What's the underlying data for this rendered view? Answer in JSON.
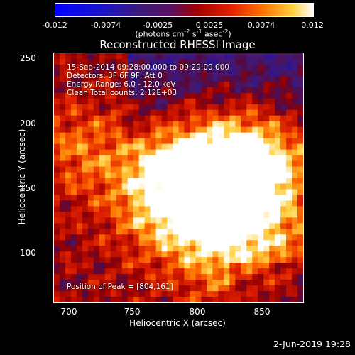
{
  "colorbar": {
    "ticks": [
      "-0.012",
      "-0.0074",
      "-0.0025",
      "0.0025",
      "0.0074",
      "0.012"
    ],
    "units_main": "(photons cm",
    "units_exp1": "-2",
    "units_mid": " s",
    "units_exp2": "-1",
    "units_mid2": " asec",
    "units_exp3": "-2",
    "units_end": ")"
  },
  "title": "Reconstructed RHESSI Image",
  "info": {
    "time": "15-Sep-2014 09:28:00.000 to 09:29:00.000",
    "detectors": "Detectors: 3F 6F 9F, Att 0",
    "energy": "Energy Range: 6.0 - 12.0 keV",
    "method": "Clean    Total counts: 2.12E+03",
    "peak": "Position of Peak = [804,161]"
  },
  "axes": {
    "xlabel": "Heliocentric X (arcsec)",
    "ylabel": "Heliocentric Y (arcsec)",
    "xticks": [
      "700",
      "750",
      "800",
      "850"
    ],
    "yticks": [
      "100",
      "150",
      "200",
      "250"
    ]
  },
  "footer": "2-Jun-2019 19:28",
  "chart_data": {
    "type": "heatmap",
    "title": "Reconstructed RHESSI Image",
    "xlabel": "Heliocentric X (arcsec)",
    "ylabel": "Heliocentric Y (arcsec)",
    "xlim": [
      688,
      880
    ],
    "ylim": [
      63,
      255
    ],
    "colorbar_range": [
      -0.012,
      0.012
    ],
    "colormap": "blue-purple-red-orange-yellow-white",
    "peak": [
      804,
      161
    ],
    "grid": false
  }
}
